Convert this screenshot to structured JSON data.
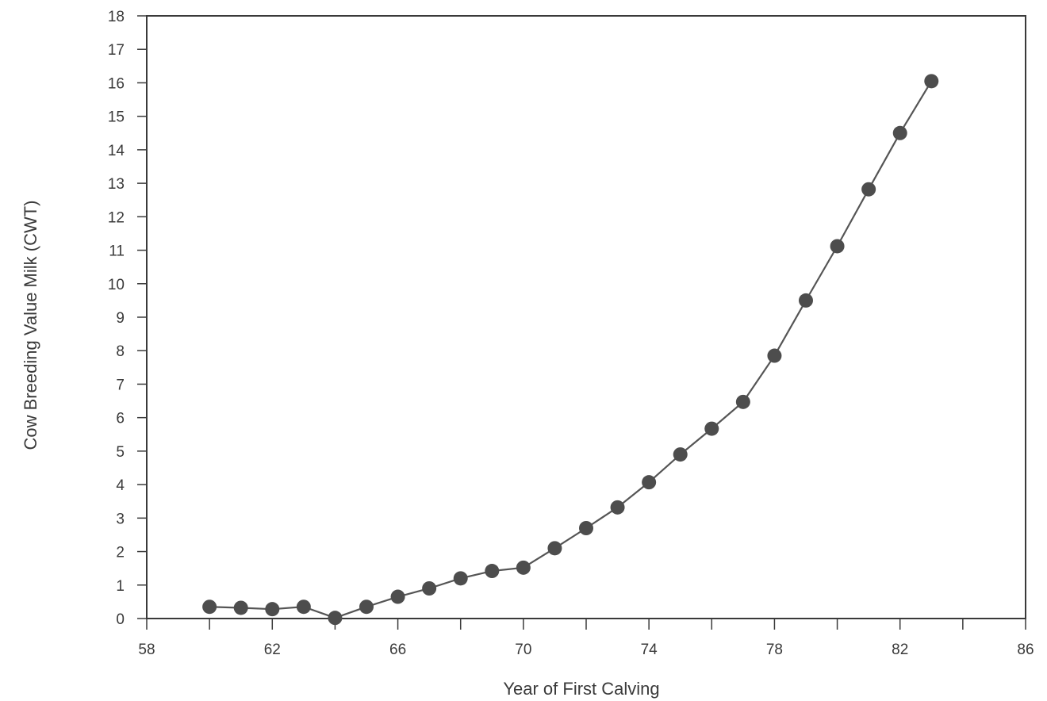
{
  "chart_data": {
    "type": "line",
    "title": "",
    "xlabel": "Year of First Calving",
    "ylabel": "Cow Breeding Value Milk (CWT)",
    "xlim": [
      58,
      86
    ],
    "ylim": [
      0,
      18
    ],
    "x_ticks": [
      58,
      62,
      66,
      70,
      74,
      78,
      82,
      86
    ],
    "x_minor_ticks": [
      60,
      64,
      68,
      72,
      76,
      80,
      84
    ],
    "y_ticks": [
      0,
      1,
      2,
      3,
      4,
      5,
      6,
      7,
      8,
      9,
      10,
      11,
      12,
      13,
      14,
      15,
      16,
      17,
      18
    ],
    "grid": false,
    "legend": "none",
    "colors": {
      "line": "#555555",
      "marker": "#4d4d4d",
      "axis": "#3a3a3a"
    },
    "series": [
      {
        "x": [
          60,
          61,
          62,
          63,
          64,
          65,
          66,
          67,
          68,
          69,
          70,
          71,
          72,
          73,
          74,
          75,
          76,
          77,
          78,
          79,
          80,
          81,
          82,
          83
        ],
        "y": [
          0.35,
          0.32,
          0.28,
          0.35,
          0.02,
          0.35,
          0.65,
          0.9,
          1.2,
          1.42,
          1.52,
          2.1,
          2.7,
          3.32,
          4.07,
          4.9,
          5.67,
          6.47,
          7.85,
          9.5,
          11.12,
          12.82,
          14.5,
          16.05
        ]
      }
    ]
  }
}
